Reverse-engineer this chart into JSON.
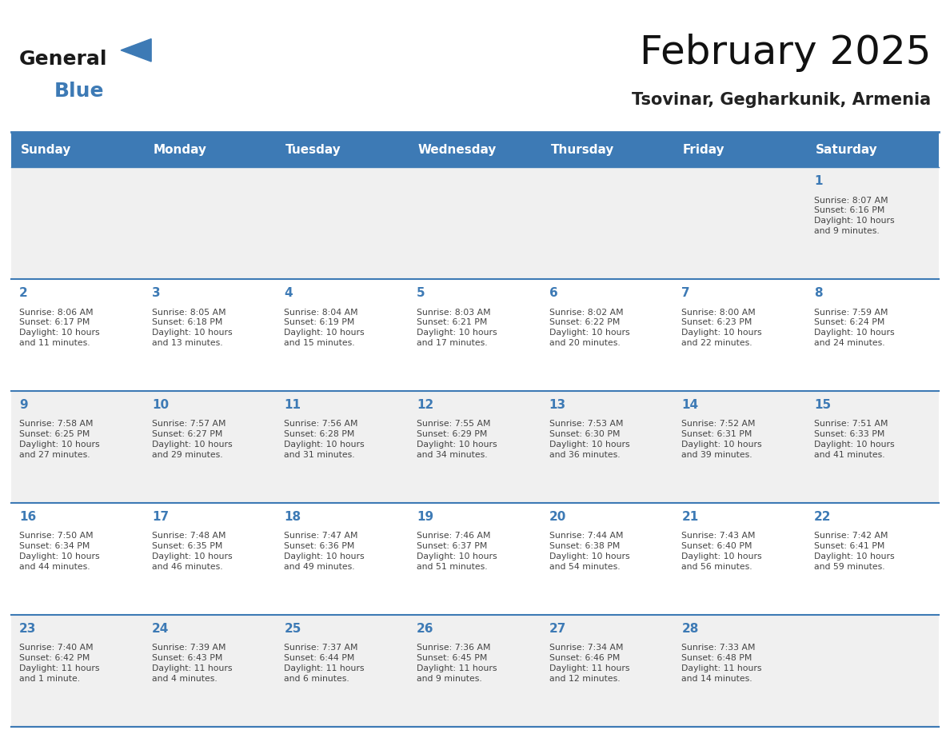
{
  "title": "February 2025",
  "subtitle": "Tsovinar, Gegharkunik, Armenia",
  "days_of_week": [
    "Sunday",
    "Monday",
    "Tuesday",
    "Wednesday",
    "Thursday",
    "Friday",
    "Saturday"
  ],
  "header_bg_color": "#3d7ab5",
  "header_text_color": "#ffffff",
  "cell_bg_even": "#f0f0f0",
  "cell_bg_odd": "#ffffff",
  "day_number_color": "#3d7ab5",
  "info_text_color": "#444444",
  "border_color": "#3d7ab5",
  "logo_color": "#3d7ab5",
  "calendar_data": [
    {
      "day": 1,
      "col": 6,
      "row": 0,
      "sunrise": "8:07 AM",
      "sunset": "6:16 PM",
      "daylight": "10 hours\nand 9 minutes."
    },
    {
      "day": 2,
      "col": 0,
      "row": 1,
      "sunrise": "8:06 AM",
      "sunset": "6:17 PM",
      "daylight": "10 hours\nand 11 minutes."
    },
    {
      "day": 3,
      "col": 1,
      "row": 1,
      "sunrise": "8:05 AM",
      "sunset": "6:18 PM",
      "daylight": "10 hours\nand 13 minutes."
    },
    {
      "day": 4,
      "col": 2,
      "row": 1,
      "sunrise": "8:04 AM",
      "sunset": "6:19 PM",
      "daylight": "10 hours\nand 15 minutes."
    },
    {
      "day": 5,
      "col": 3,
      "row": 1,
      "sunrise": "8:03 AM",
      "sunset": "6:21 PM",
      "daylight": "10 hours\nand 17 minutes."
    },
    {
      "day": 6,
      "col": 4,
      "row": 1,
      "sunrise": "8:02 AM",
      "sunset": "6:22 PM",
      "daylight": "10 hours\nand 20 minutes."
    },
    {
      "day": 7,
      "col": 5,
      "row": 1,
      "sunrise": "8:00 AM",
      "sunset": "6:23 PM",
      "daylight": "10 hours\nand 22 minutes."
    },
    {
      "day": 8,
      "col": 6,
      "row": 1,
      "sunrise": "7:59 AM",
      "sunset": "6:24 PM",
      "daylight": "10 hours\nand 24 minutes."
    },
    {
      "day": 9,
      "col": 0,
      "row": 2,
      "sunrise": "7:58 AM",
      "sunset": "6:25 PM",
      "daylight": "10 hours\nand 27 minutes."
    },
    {
      "day": 10,
      "col": 1,
      "row": 2,
      "sunrise": "7:57 AM",
      "sunset": "6:27 PM",
      "daylight": "10 hours\nand 29 minutes."
    },
    {
      "day": 11,
      "col": 2,
      "row": 2,
      "sunrise": "7:56 AM",
      "sunset": "6:28 PM",
      "daylight": "10 hours\nand 31 minutes."
    },
    {
      "day": 12,
      "col": 3,
      "row": 2,
      "sunrise": "7:55 AM",
      "sunset": "6:29 PM",
      "daylight": "10 hours\nand 34 minutes."
    },
    {
      "day": 13,
      "col": 4,
      "row": 2,
      "sunrise": "7:53 AM",
      "sunset": "6:30 PM",
      "daylight": "10 hours\nand 36 minutes."
    },
    {
      "day": 14,
      "col": 5,
      "row": 2,
      "sunrise": "7:52 AM",
      "sunset": "6:31 PM",
      "daylight": "10 hours\nand 39 minutes."
    },
    {
      "day": 15,
      "col": 6,
      "row": 2,
      "sunrise": "7:51 AM",
      "sunset": "6:33 PM",
      "daylight": "10 hours\nand 41 minutes."
    },
    {
      "day": 16,
      "col": 0,
      "row": 3,
      "sunrise": "7:50 AM",
      "sunset": "6:34 PM",
      "daylight": "10 hours\nand 44 minutes."
    },
    {
      "day": 17,
      "col": 1,
      "row": 3,
      "sunrise": "7:48 AM",
      "sunset": "6:35 PM",
      "daylight": "10 hours\nand 46 minutes."
    },
    {
      "day": 18,
      "col": 2,
      "row": 3,
      "sunrise": "7:47 AM",
      "sunset": "6:36 PM",
      "daylight": "10 hours\nand 49 minutes."
    },
    {
      "day": 19,
      "col": 3,
      "row": 3,
      "sunrise": "7:46 AM",
      "sunset": "6:37 PM",
      "daylight": "10 hours\nand 51 minutes."
    },
    {
      "day": 20,
      "col": 4,
      "row": 3,
      "sunrise": "7:44 AM",
      "sunset": "6:38 PM",
      "daylight": "10 hours\nand 54 minutes."
    },
    {
      "day": 21,
      "col": 5,
      "row": 3,
      "sunrise": "7:43 AM",
      "sunset": "6:40 PM",
      "daylight": "10 hours\nand 56 minutes."
    },
    {
      "day": 22,
      "col": 6,
      "row": 3,
      "sunrise": "7:42 AM",
      "sunset": "6:41 PM",
      "daylight": "10 hours\nand 59 minutes."
    },
    {
      "day": 23,
      "col": 0,
      "row": 4,
      "sunrise": "7:40 AM",
      "sunset": "6:42 PM",
      "daylight": "11 hours\nand 1 minute."
    },
    {
      "day": 24,
      "col": 1,
      "row": 4,
      "sunrise": "7:39 AM",
      "sunset": "6:43 PM",
      "daylight": "11 hours\nand 4 minutes."
    },
    {
      "day": 25,
      "col": 2,
      "row": 4,
      "sunrise": "7:37 AM",
      "sunset": "6:44 PM",
      "daylight": "11 hours\nand 6 minutes."
    },
    {
      "day": 26,
      "col": 3,
      "row": 4,
      "sunrise": "7:36 AM",
      "sunset": "6:45 PM",
      "daylight": "11 hours\nand 9 minutes."
    },
    {
      "day": 27,
      "col": 4,
      "row": 4,
      "sunrise": "7:34 AM",
      "sunset": "6:46 PM",
      "daylight": "11 hours\nand 12 minutes."
    },
    {
      "day": 28,
      "col": 5,
      "row": 4,
      "sunrise": "7:33 AM",
      "sunset": "6:48 PM",
      "daylight": "11 hours\nand 14 minutes."
    }
  ],
  "num_rows": 5,
  "num_cols": 7,
  "fig_width": 11.88,
  "fig_height": 9.18
}
